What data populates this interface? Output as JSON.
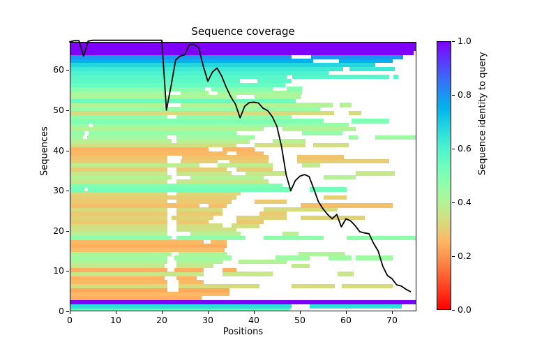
{
  "chart_data": {
    "type": "heatmap",
    "title": "Sequence coverage",
    "xlabel": "Positions",
    "ylabel": "Sequences",
    "xlim": [
      0,
      75.3
    ],
    "ylim": [
      0,
      67
    ],
    "xticks": [
      0,
      10,
      20,
      30,
      40,
      50,
      60,
      70
    ],
    "yticks": [
      0,
      10,
      20,
      30,
      40,
      50,
      60
    ],
    "grid": false,
    "colorbar": {
      "label": "Sequence identity to query",
      "ticks": [
        0.0,
        0.2,
        0.4,
        0.6,
        0.8,
        1.0
      ],
      "colormap": "rainbow_r"
    },
    "coverage_line": {
      "name": "number of sequences covering each position",
      "color": "#000000",
      "x": [
        0,
        1,
        2,
        3,
        4,
        5,
        6,
        7,
        8,
        9,
        10,
        11,
        12,
        13,
        14,
        15,
        16,
        17,
        18,
        19,
        20,
        21,
        22,
        23,
        24,
        25,
        26,
        27,
        28,
        29,
        30,
        31,
        32,
        33,
        34,
        35,
        36,
        37,
        38,
        39,
        40,
        41,
        42,
        43,
        44,
        45,
        46,
        47,
        48,
        49,
        50,
        51,
        52,
        53,
        54,
        55,
        56,
        57,
        58,
        59,
        60,
        61,
        62,
        63,
        64,
        65,
        66,
        67,
        68,
        69,
        70,
        71,
        72,
        73,
        74
      ],
      "y": [
        67,
        67.3,
        67.3,
        63.5,
        67.2,
        67.4,
        67.4,
        67.4,
        67.4,
        67.4,
        67.4,
        67.4,
        67.4,
        67.4,
        67.4,
        67.4,
        67.4,
        67.4,
        67.4,
        67.4,
        67.4,
        50,
        56,
        62.5,
        63.5,
        63.8,
        66.3,
        66.4,
        65.6,
        61,
        57.2,
        59.5,
        60.5,
        58.5,
        55.7,
        53.3,
        51.5,
        48.1,
        51,
        51.9,
        52,
        51.8,
        50.5,
        49.9,
        48.4,
        46,
        41,
        34,
        30,
        32.5,
        33.6,
        34,
        33.5,
        30.5,
        27.3,
        25.5,
        24.1,
        23,
        24.1,
        21,
        23,
        22.5,
        21.3,
        19.8,
        19.5,
        19.3,
        16.9,
        15,
        11.2,
        8.9,
        8.1,
        6.6,
        6.3,
        5.5,
        4.9
      ]
    },
    "sequences": [
      {
        "identity": 0.56,
        "segments": [
          [
            0,
            47.5
          ]
        ]
      },
      {
        "identity": 0.66,
        "segments": [
          [
            0,
            48
          ],
          [
            52,
            72
          ]
        ]
      },
      {
        "identity": 1.0,
        "segments": [
          [
            0,
            75.3
          ]
        ]
      },
      {
        "identity": 0.24,
        "segments": [
          [
            0,
            28.5
          ]
        ]
      },
      {
        "identity": 0.26,
        "segments": [
          [
            0,
            34.5
          ]
        ]
      },
      {
        "identity": 0.23,
        "segments": [
          [
            0,
            21
          ],
          [
            23.5,
            34.5
          ]
        ]
      },
      {
        "identity": 0.33,
        "segments": [
          [
            0,
            21
          ],
          [
            23.5,
            41
          ],
          [
            48,
            57.5
          ],
          [
            59,
            70
          ]
        ]
      },
      {
        "identity": 0.26,
        "segments": [
          [
            0,
            21
          ],
          [
            23.5,
            29
          ]
        ]
      },
      {
        "identity": 0.25,
        "segments": [
          [
            0,
            20.5
          ],
          [
            23,
            27.5
          ]
        ]
      },
      {
        "identity": 0.36,
        "segments": [
          [
            0,
            29
          ],
          [
            33,
            44
          ],
          [
            58,
            61.5
          ]
        ]
      },
      {
        "identity": 0.24,
        "segments": [
          [
            0,
            21
          ],
          [
            22.5,
            29
          ],
          [
            33,
            36
          ]
        ]
      },
      {
        "identity": 0.37,
        "segments": [
          [
            0,
            20.5
          ],
          [
            23,
            31
          ],
          [
            48,
            52
          ]
        ]
      },
      {
        "identity": 0.4,
        "segments": [
          [
            0,
            21
          ],
          [
            23,
            33
          ],
          [
            36.5,
            47
          ]
        ]
      },
      {
        "identity": 0.44,
        "segments": [
          [
            0,
            21
          ],
          [
            22.5,
            35
          ],
          [
            44.5,
            52
          ],
          [
            56,
            61
          ],
          [
            62,
            70
          ]
        ]
      },
      {
        "identity": 0.41,
        "segments": [
          [
            0,
            22
          ],
          [
            23.5,
            34
          ],
          [
            49.5,
            59.5
          ]
        ]
      },
      {
        "identity": 0.27,
        "segments": [
          [
            0,
            33.5
          ]
        ]
      },
      {
        "identity": 0.24,
        "segments": [
          [
            0,
            34
          ]
        ]
      },
      {
        "identity": 0.26,
        "segments": [
          [
            0,
            29
          ],
          [
            30.5,
            34
          ]
        ]
      },
      {
        "identity": 0.47,
        "segments": [
          [
            0,
            22
          ],
          [
            23,
            38
          ],
          [
            42,
            55
          ],
          [
            60,
            75.3
          ]
        ]
      },
      {
        "identity": 0.39,
        "segments": [
          [
            0,
            21
          ],
          [
            26,
            37
          ],
          [
            46,
            49.5
          ]
        ]
      },
      {
        "identity": 0.35,
        "segments": [
          [
            0,
            21
          ],
          [
            23,
            36
          ]
        ]
      },
      {
        "identity": 0.34,
        "segments": [
          [
            0,
            21
          ],
          [
            23,
            33
          ],
          [
            35,
            41
          ]
        ]
      },
      {
        "identity": 0.29,
        "segments": [
          [
            0,
            21
          ],
          [
            23,
            30
          ],
          [
            36,
            42
          ]
        ]
      },
      {
        "identity": 0.31,
        "segments": [
          [
            0,
            21
          ],
          [
            22,
            31
          ],
          [
            36,
            47
          ],
          [
            50,
            64
          ]
        ]
      },
      {
        "identity": 0.29,
        "segments": [
          [
            0,
            21
          ],
          [
            23,
            33
          ],
          [
            41,
            47
          ]
        ]
      },
      {
        "identity": 0.33,
        "segments": [
          [
            0,
            21
          ],
          [
            23,
            33
          ],
          [
            42,
            58
          ]
        ]
      },
      {
        "identity": 0.27,
        "segments": [
          [
            0,
            28
          ],
          [
            30,
            34
          ],
          [
            50,
            70
          ]
        ]
      },
      {
        "identity": 0.29,
        "segments": [
          [
            0,
            21
          ],
          [
            23,
            35
          ],
          [
            40,
            47
          ]
        ]
      },
      {
        "identity": 0.3,
        "segments": [
          [
            0,
            36
          ],
          [
            55,
            60
          ]
        ]
      },
      {
        "identity": 0.32,
        "segments": [
          [
            0,
            21
          ],
          [
            23,
            37
          ]
        ]
      },
      {
        "identity": 0.52,
        "segments": [
          [
            0,
            3
          ],
          [
            3.8,
            48
          ],
          [
            52,
            60
          ]
        ]
      },
      {
        "identity": 0.5,
        "segments": [
          [
            0,
            46
          ]
        ]
      },
      {
        "identity": 0.36,
        "segments": [
          [
            0,
            21
          ],
          [
            23,
            43
          ]
        ]
      },
      {
        "identity": 0.4,
        "segments": [
          [
            0,
            22
          ],
          [
            26,
            42
          ],
          [
            55,
            62
          ]
        ]
      },
      {
        "identity": 0.36,
        "segments": [
          [
            0,
            21
          ],
          [
            23,
            35
          ],
          [
            38,
            47
          ],
          [
            62,
            70.5
          ]
        ]
      },
      {
        "identity": 0.3,
        "segments": [
          [
            0,
            21
          ],
          [
            23,
            34
          ],
          [
            36,
            44
          ]
        ]
      },
      {
        "identity": 0.38,
        "segments": [
          [
            0,
            28
          ],
          [
            32,
            44
          ],
          [
            50.3,
            54.3
          ]
        ]
      },
      {
        "identity": 0.3,
        "segments": [
          [
            0,
            21
          ],
          [
            24,
            32
          ],
          [
            34.5,
            43
          ],
          [
            49.2,
            69.2
          ]
        ]
      },
      {
        "identity": 0.28,
        "segments": [
          [
            0,
            21
          ],
          [
            24.3,
            43
          ],
          [
            49.2,
            59.4
          ]
        ]
      },
      {
        "identity": 0.26,
        "segments": [
          [
            0,
            34
          ],
          [
            36,
            42
          ]
        ]
      },
      {
        "identity": 0.25,
        "segments": [
          [
            0,
            30
          ],
          [
            33,
            40
          ]
        ]
      },
      {
        "identity": 0.34,
        "segments": [
          [
            0,
            36
          ],
          [
            40,
            51
          ],
          [
            52.7,
            60.4
          ]
        ]
      },
      {
        "identity": 0.39,
        "segments": [
          [
            0,
            22
          ],
          [
            23,
            39
          ],
          [
            44,
            51
          ]
        ]
      },
      {
        "identity": 0.44,
        "segments": [
          [
            0,
            2.8
          ],
          [
            3.6,
            21
          ],
          [
            23,
            40
          ],
          [
            60.4,
            62.4
          ],
          [
            66.2,
            75.3
          ]
        ]
      },
      {
        "identity": 0.46,
        "segments": [
          [
            0,
            3
          ],
          [
            4,
            36
          ],
          [
            50.3,
            59.1
          ]
        ]
      },
      {
        "identity": 0.4,
        "segments": [
          [
            0,
            42
          ],
          [
            46,
            62
          ]
        ]
      },
      {
        "identity": 0.45,
        "segments": [
          [
            0,
            4
          ],
          [
            4.8,
            60.4
          ]
        ]
      },
      {
        "identity": 0.5,
        "segments": [
          [
            0,
            55
          ],
          [
            61,
            69.2
          ]
        ]
      },
      {
        "identity": 0.47,
        "segments": [
          [
            0,
            21
          ],
          [
            23,
            48
          ]
        ]
      },
      {
        "identity": 0.33,
        "segments": [
          [
            0,
            57.3
          ],
          [
            60.4,
            63.2
          ]
        ]
      },
      {
        "identity": 0.45,
        "segments": [
          [
            0,
            54.3
          ]
        ]
      },
      {
        "identity": 0.4,
        "segments": [
          [
            0,
            20.5
          ],
          [
            23.9,
            57
          ],
          [
            58.5,
            61
          ]
        ]
      },
      {
        "identity": 0.54,
        "segments": [
          [
            0,
            49
          ]
        ]
      },
      {
        "identity": 0.41,
        "segments": [
          [
            0,
            36
          ],
          [
            40,
            50
          ]
        ]
      },
      {
        "identity": 0.42,
        "segments": [
          [
            0,
            20.8
          ],
          [
            24,
            30
          ],
          [
            32,
            50.3
          ]
        ]
      },
      {
        "identity": 0.48,
        "segments": [
          [
            0,
            29.3
          ],
          [
            30.6,
            44
          ],
          [
            47,
            50.3
          ]
        ]
      },
      {
        "identity": 0.55,
        "segments": [
          [
            0,
            46.7
          ]
        ]
      },
      {
        "identity": 0.57,
        "segments": [
          [
            0,
            36.8
          ],
          [
            40.6,
            48
          ]
        ]
      },
      {
        "identity": 0.58,
        "segments": [
          [
            0,
            47
          ],
          [
            48.2,
            69.2
          ],
          [
            70.2,
            71.2
          ]
        ]
      },
      {
        "identity": 0.6,
        "segments": [
          [
            0,
            56
          ]
        ]
      },
      {
        "identity": 0.63,
        "segments": [
          [
            0,
            59.3
          ],
          [
            60.6,
            70.5
          ]
        ]
      },
      {
        "identity": 0.68,
        "segments": [
          [
            0,
            66.2
          ]
        ]
      },
      {
        "identity": 0.76,
        "segments": [
          [
            0,
            52.7
          ],
          [
            58.3,
            70
          ]
        ]
      },
      {
        "identity": 0.8,
        "segments": [
          [
            0,
            48
          ],
          [
            52.3,
            72.2
          ]
        ]
      },
      {
        "identity": 1.0,
        "segments": [
          [
            0,
            74.5
          ]
        ]
      },
      {
        "identity": 1.0,
        "segments": [
          [
            0,
            75.3
          ]
        ]
      },
      {
        "identity": 1.0,
        "segments": [
          [
            0,
            75.3
          ]
        ]
      }
    ]
  }
}
